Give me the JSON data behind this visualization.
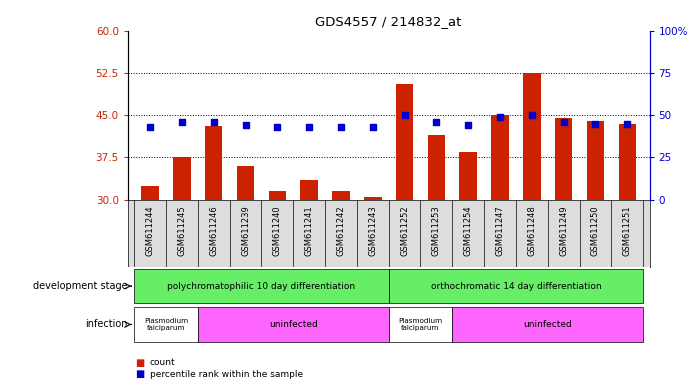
{
  "title": "GDS4557 / 214832_at",
  "samples": [
    "GSM611244",
    "GSM611245",
    "GSM611246",
    "GSM611239",
    "GSM611240",
    "GSM611241",
    "GSM611242",
    "GSM611243",
    "GSM611252",
    "GSM611253",
    "GSM611254",
    "GSM611247",
    "GSM611248",
    "GSM611249",
    "GSM611250",
    "GSM611251"
  ],
  "counts": [
    32.5,
    37.5,
    43.0,
    36.0,
    31.5,
    33.5,
    31.5,
    30.5,
    50.5,
    41.5,
    38.5,
    45.0,
    52.5,
    44.5,
    44.0,
    43.5
  ],
  "percentiles": [
    43,
    46,
    46,
    44,
    43,
    43,
    43,
    43,
    50,
    46,
    44,
    49,
    50,
    46,
    45,
    45
  ],
  "ylim_left": [
    30,
    60
  ],
  "ylim_right": [
    0,
    100
  ],
  "yticks_left": [
    30,
    37.5,
    45,
    52.5,
    60
  ],
  "yticks_right": [
    0,
    25,
    50,
    75,
    100
  ],
  "bar_color": "#cc2200",
  "marker_color": "#0000cc",
  "background_color": "#ffffff",
  "plot_bg": "#ffffff",
  "dev_stage_labels": [
    "polychromatophilic 10 day differentiation",
    "orthochromatic 14 day differentiation"
  ],
  "dev_stage_color": "#66ee66",
  "infection_color1": "#ffffff",
  "infection_color2": "#ff66ff",
  "row_label_dev": "development stage",
  "row_label_inf": "infection",
  "legend_count": "count",
  "legend_pct": "percentile rank within the sample",
  "tick_color_left": "#cc2200",
  "tick_color_right": "#0000cc",
  "n_samples": 16,
  "dev_split": 8,
  "inf_split1": 2,
  "inf_split2": 10
}
